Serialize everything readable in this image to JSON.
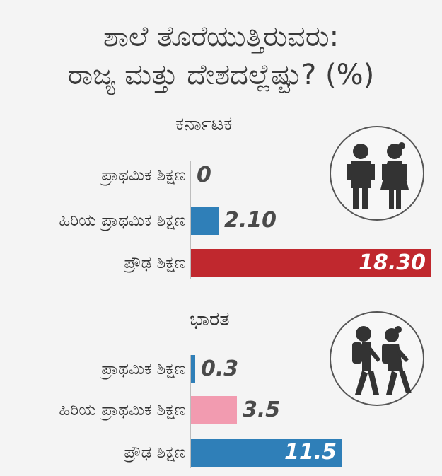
{
  "title_line1": "ಶಾಲೆ ತೊರೆಯುತ್ತಿರುವರು:",
  "title_line2": "ರಾಜ್ಯ ಮತ್ತು ದೇಶದಲ್ಲೆಷ್ಟು? (%)",
  "chart_data": [
    {
      "type": "bar",
      "orientation": "horizontal",
      "title": "ಕರ್ನಾಟಕ",
      "categories": [
        "ಪ್ರಾಥಮಿಕ ಶಿಕ್ಷಣ",
        "ಹಿರಿಯ ಪ್ರಾಥಮಿಕ ಶಿಕ್ಷಣ",
        "ಪ್ರೌಢ ಶಿಕ್ಷಣ"
      ],
      "values": [
        0,
        2.1,
        18.3
      ],
      "value_labels": [
        "0",
        "2.10",
        "18.30"
      ],
      "colors": [
        "#2f7fb8",
        "#2f7fb8",
        "#c0282e"
      ],
      "xlim": [
        0,
        18.3
      ],
      "grid": false,
      "legend": "none"
    },
    {
      "type": "bar",
      "orientation": "horizontal",
      "title": "ಭಾರತ",
      "categories": [
        "ಪ್ರಾಥಮಿಕ ಶಿಕ್ಷಣ",
        "ಹಿರಿಯ ಪ್ರಾಥಮಿಕ ಶಿಕ್ಷಣ",
        "ಪ್ರೌಢ ಶಿಕ್ಷಣ"
      ],
      "values": [
        0.3,
        3.5,
        11.5
      ],
      "value_labels": [
        "0.3",
        "3.5",
        "11.5"
      ],
      "colors": [
        "#2f7fb8",
        "#f29bb0",
        "#2f7fb8"
      ],
      "xlim": [
        0,
        18.3
      ],
      "grid": false,
      "legend": "none"
    }
  ],
  "icons": [
    "students-standing-icon",
    "students-walking-icon"
  ]
}
